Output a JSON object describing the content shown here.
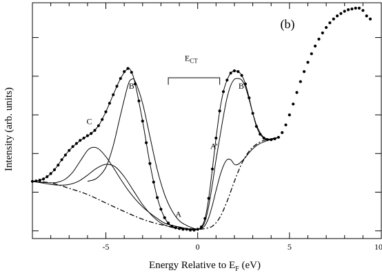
{
  "chart_data": {
    "type": "line",
    "title": "",
    "panel_label": "(b)",
    "xlabel_main": "Energy Relative to E",
    "xlabel_sub": "F",
    "xlabel_unit": " (eV)",
    "ylabel": "Intensity (arb. units)",
    "xlim": [
      -9,
      10
    ],
    "ylim": [
      -0.1,
      2.95
    ],
    "x_ticks": [
      -5,
      0,
      5,
      10
    ],
    "x_tick_labels": [
      "-5",
      "0",
      "5",
      "10"
    ],
    "x_minor_ticks": [
      -9,
      -8,
      -7,
      -6,
      -4,
      -3,
      -2,
      -1,
      1,
      2,
      3,
      4,
      6,
      7,
      8,
      9
    ],
    "y_ticks": [
      0,
      0.5,
      1,
      1.5,
      2,
      2.5
    ],
    "y_tick_labels": [],
    "grid": false,
    "annotations": [
      {
        "text": "A",
        "x": -1.05,
        "y": 0.18
      },
      {
        "text": "B",
        "x": -3.6,
        "y": 1.84
      },
      {
        "text": "C",
        "x": -5.9,
        "y": 1.38
      },
      {
        "text": "A’",
        "x": 0.9,
        "y": 1.06
      },
      {
        "text": "B’",
        "x": 2.45,
        "y": 1.84
      },
      {
        "text": "E",
        "sub": "CT",
        "x": -0.35,
        "y": 2.2
      }
    ],
    "bracket": {
      "x1": -1.6,
      "x2": 1.2,
      "y": 1.98,
      "tick": 0.09
    },
    "series": [
      {
        "style": "dots",
        "x": [
          -9,
          -8.8,
          -8.6,
          -8.4,
          -8.2,
          -8,
          -7.8,
          -7.6,
          -7.4,
          -7.2,
          -7,
          -6.8,
          -6.6,
          -6.4,
          -6.2,
          -6,
          -5.8,
          -5.6,
          -5.4,
          -5.2,
          -5,
          -4.8,
          -4.6,
          -4.4,
          -4.2,
          -4,
          -3.8,
          -3.6,
          -3.4,
          -3.2,
          -3,
          -2.8,
          -2.6,
          -2.4,
          -2.2,
          -2,
          -1.8,
          -1.6,
          -1.4,
          -1.2,
          -1,
          -0.8,
          -0.6,
          -0.4,
          -0.2,
          0,
          0.2,
          0.4,
          0.6,
          0.8,
          1,
          1.2,
          1.4,
          1.6,
          1.8,
          2,
          2.2,
          2.4,
          2.6,
          2.8,
          3,
          3.2,
          3.4,
          3.6,
          3.8,
          4,
          4.2,
          4.4,
          4.6,
          4.8,
          5,
          5.2,
          5.4,
          5.6,
          5.8,
          6,
          6.2,
          6.4,
          6.6,
          6.8,
          7,
          7.2,
          7.4,
          7.6,
          7.8,
          8,
          8.2,
          8.4,
          8.6,
          8.8,
          9,
          9.2,
          9.4
        ],
        "values": [
          0.64,
          0.645,
          0.655,
          0.67,
          0.7,
          0.74,
          0.79,
          0.85,
          0.92,
          0.98,
          1.04,
          1.09,
          1.13,
          1.17,
          1.2,
          1.23,
          1.26,
          1.3,
          1.36,
          1.44,
          1.54,
          1.65,
          1.76,
          1.87,
          1.97,
          2.06,
          2.1,
          2.05,
          1.9,
          1.68,
          1.42,
          1.14,
          0.87,
          0.63,
          0.43,
          0.28,
          0.17,
          0.1,
          0.06,
          0.04,
          0.03,
          0.02,
          0.02,
          0.01,
          0.01,
          0.02,
          0.05,
          0.16,
          0.42,
          0.8,
          1.2,
          1.55,
          1.8,
          1.95,
          2.04,
          2.07,
          2.06,
          2.01,
          1.9,
          1.72,
          1.52,
          1.35,
          1.25,
          1.2,
          1.18,
          1.18,
          1.19,
          1.21,
          1.27,
          1.37,
          1.5,
          1.64,
          1.79,
          1.93,
          2.06,
          2.18,
          2.29,
          2.39,
          2.48,
          2.56,
          2.63,
          2.69,
          2.74,
          2.78,
          2.81,
          2.84,
          2.86,
          2.87,
          2.88,
          2.88,
          2.85,
          2.78,
          2.74
        ]
      },
      {
        "style": "solid",
        "x": [
          -9,
          -8.6,
          -8.2,
          -7.8,
          -7.4,
          -7,
          -6.6,
          -6.2,
          -5.8,
          -5.4,
          -5,
          -4.6,
          -4.2,
          -3.8,
          -3.6,
          -3.4,
          -3,
          -2.6,
          -2.2,
          -1.8,
          -1.4,
          -1,
          -0.6,
          -0.2,
          0,
          0.2,
          0.4,
          0.6,
          0.8,
          1,
          1.2,
          1.4,
          1.6,
          1.8,
          2,
          2.2,
          2.4,
          2.6,
          2.8,
          3,
          3.2,
          3.4,
          3.6,
          3.8,
          4,
          4.2,
          4.4
        ],
        "values": [
          0.64,
          0.655,
          0.7,
          0.79,
          0.92,
          1.04,
          1.13,
          1.2,
          1.26,
          1.36,
          1.54,
          1.76,
          1.97,
          2.1,
          2.05,
          1.9,
          1.42,
          0.87,
          0.43,
          0.17,
          0.06,
          0.03,
          0.02,
          0.01,
          0.02,
          0.05,
          0.16,
          0.42,
          0.8,
          1.2,
          1.55,
          1.8,
          1.95,
          2.04,
          2.07,
          2.06,
          2.01,
          1.9,
          1.72,
          1.52,
          1.35,
          1.25,
          1.2,
          1.18,
          1.18,
          1.19,
          1.21
        ]
      },
      {
        "style": "solid",
        "x": [
          -9,
          -8.5,
          -8,
          -7.5,
          -7,
          -6.5,
          -6,
          -5.5,
          -5,
          -4.5,
          -4,
          -3.5,
          -3,
          -2.5,
          -2,
          -1.5,
          -1,
          -0.5,
          0
        ],
        "values": [
          0.64,
          0.62,
          0.6,
          0.59,
          0.6,
          0.64,
          0.72,
          0.81,
          0.86,
          0.83,
          0.7,
          0.52,
          0.34,
          0.2,
          0.1,
          0.05,
          0.03,
          0.02,
          0.02
        ]
      },
      {
        "style": "solid",
        "x": [
          -9,
          -8,
          -7.6,
          -7.2,
          -6.8,
          -6.4,
          -6,
          -5.7,
          -5.4,
          -5,
          -4.6,
          -4.2,
          -3.8,
          -3.4,
          -3,
          -2.6,
          -2.2,
          -1.8,
          -1.4,
          -1,
          -0.6,
          -0.2,
          0
        ],
        "values": [
          0.64,
          0.62,
          0.63,
          0.67,
          0.76,
          0.9,
          1.04,
          1.08,
          1.06,
          0.96,
          0.82,
          0.67,
          0.53,
          0.41,
          0.31,
          0.23,
          0.16,
          0.1,
          0.07,
          0.05,
          0.03,
          0.02,
          0.02
        ]
      },
      {
        "style": "solid",
        "x": [
          -6,
          -5.5,
          -5,
          -4.6,
          -4.2,
          -3.8,
          -3.6,
          -3.4,
          -3,
          -2.6,
          -2.2,
          -1.8,
          -1.4,
          -1,
          -0.6,
          -0.2,
          0
        ],
        "values": [
          0.64,
          0.68,
          0.82,
          1.1,
          1.5,
          1.88,
          1.96,
          1.93,
          1.65,
          1.22,
          0.79,
          0.47,
          0.26,
          0.13,
          0.07,
          0.03,
          0.02
        ]
      },
      {
        "style": "solid",
        "x": [
          0,
          0.2,
          0.4,
          0.6,
          0.8,
          1,
          1.2,
          1.4,
          1.6,
          1.8,
          2,
          2.2,
          2.4,
          2.6,
          2.8,
          3,
          3.2,
          3.4,
          3.6,
          3.8,
          4,
          4.2,
          4.4
        ],
        "values": [
          0.02,
          0.04,
          0.12,
          0.32,
          0.6,
          0.92,
          1.2,
          1.48,
          1.72,
          1.88,
          1.96,
          1.97,
          1.95,
          1.86,
          1.7,
          1.52,
          1.37,
          1.27,
          1.21,
          1.19,
          1.18,
          1.19,
          1.21
        ]
      },
      {
        "style": "solid",
        "x": [
          0,
          0.2,
          0.4,
          0.6,
          0.8,
          1,
          1.2,
          1.4,
          1.6,
          1.8,
          2,
          2.2,
          2.4,
          2.6,
          2.8,
          3,
          3.2,
          3.4,
          3.6,
          3.8,
          4,
          4.2,
          4.4
        ],
        "values": [
          0.02,
          0.03,
          0.07,
          0.17,
          0.33,
          0.52,
          0.7,
          0.84,
          0.92,
          0.92,
          0.86,
          0.86,
          0.9,
          0.95,
          1.01,
          1.06,
          1.1,
          1.13,
          1.15,
          1.17,
          1.18,
          1.19,
          1.21
        ]
      },
      {
        "style": "dashdot",
        "x": [
          -9,
          -8,
          -7,
          -6,
          -5,
          -4,
          -3,
          -2,
          -1,
          0,
          0.4,
          0.8,
          1.2,
          1.6,
          2,
          2.4,
          2.8,
          3.2,
          3.6,
          4,
          4.4
        ],
        "values": [
          0.64,
          0.62,
          0.55,
          0.47,
          0.36,
          0.25,
          0.15,
          0.08,
          0.04,
          0.02,
          0.03,
          0.06,
          0.17,
          0.38,
          0.64,
          0.87,
          1.03,
          1.12,
          1.17,
          1.19,
          1.21
        ]
      }
    ]
  }
}
